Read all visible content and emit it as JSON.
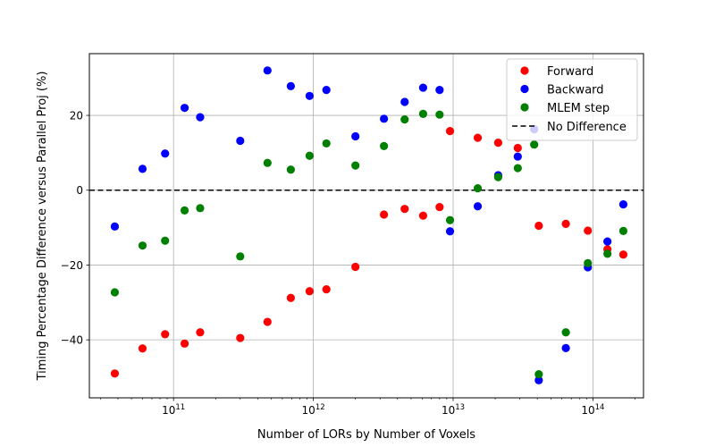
{
  "chart_data": {
    "type": "scatter",
    "title": "",
    "xlabel": "Number of LORs by Number of Voxels",
    "ylabel": "Timing Percentage Difference versus Parallel Proj (%)",
    "xscale": "log",
    "xlim": [
      25000000000.0,
      230000000000000.0
    ],
    "ylim": [
      -55.5,
      36.5
    ],
    "grid": true,
    "legend_position": "top-right",
    "x_ticks": [
      {
        "value": 100000000000.0,
        "base": "10",
        "exp": "11"
      },
      {
        "value": 1000000000000.0,
        "base": "10",
        "exp": "12"
      },
      {
        "value": 10000000000000.0,
        "base": "10",
        "exp": "13"
      },
      {
        "value": 100000000000000.0,
        "base": "10",
        "exp": "14"
      }
    ],
    "y_ticks": [
      {
        "value": 20,
        "label": "20"
      },
      {
        "value": 0,
        "label": "0"
      },
      {
        "value": -20,
        "label": "−20"
      },
      {
        "value": -40,
        "label": "−40"
      }
    ],
    "reference_line": {
      "name": "No Difference",
      "y": 0,
      "color": "#000000",
      "style": "dashed"
    },
    "x": [
      38000000000.0,
      60000000000.0,
      87000000000.0,
      120000000000.0,
      155000000000.0,
      300000000000.0,
      470000000000.0,
      690000000000.0,
      940000000000.0,
      1240000000000.0,
      2000000000000.0,
      3200000000000.0,
      4500000000000.0,
      6100000000000.0,
      8000000000000.0,
      9500000000000.0,
      15000000000000.0,
      21000000000000.0,
      29000000000000.0,
      38000000000000.0,
      41000000000000.0,
      64000000000000.0,
      92000000000000.0,
      127000000000000.0,
      165000000000000.0
    ],
    "series": [
      {
        "name": "Forward",
        "color": "#ff0000",
        "values": [
          -49.0,
          -42.3,
          -38.5,
          -41.0,
          -38.0,
          -39.5,
          -35.2,
          -28.8,
          -27.0,
          -26.5,
          -20.5,
          -6.5,
          -5.0,
          -6.8,
          -4.5,
          15.8,
          14.0,
          12.7,
          11.3,
          16.3,
          -9.5,
          -9.0,
          -10.8,
          -15.8,
          -17.2
        ]
      },
      {
        "name": "Backward",
        "color": "#0000ff",
        "values": [
          -9.7,
          5.7,
          9.8,
          22.0,
          19.5,
          13.2,
          32.0,
          27.8,
          25.2,
          26.8,
          14.4,
          19.1,
          23.6,
          27.4,
          26.8,
          -11.0,
          -4.3,
          4.0,
          9.0,
          16.3,
          -50.8,
          -42.2,
          -20.6,
          -13.7,
          -3.8
        ]
      },
      {
        "name": "MLEM step",
        "color": "#008000",
        "values": [
          -27.3,
          -14.8,
          -13.5,
          -5.4,
          -4.8,
          -17.7,
          7.3,
          5.5,
          9.2,
          12.5,
          6.6,
          11.8,
          18.9,
          20.4,
          20.2,
          -8.0,
          0.5,
          3.5,
          5.9,
          12.2,
          -49.2,
          -38.0,
          -19.5,
          -17.0,
          -10.9
        ]
      }
    ]
  }
}
